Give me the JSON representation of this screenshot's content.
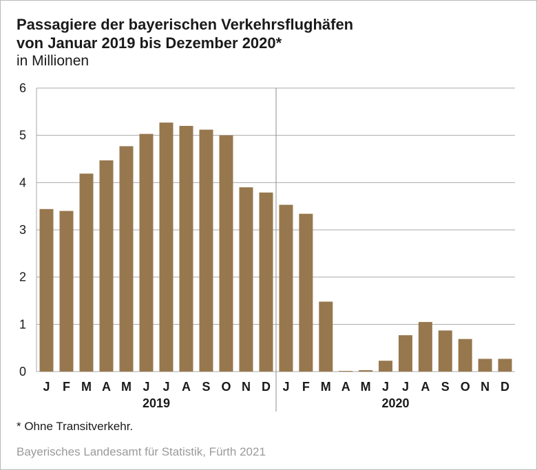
{
  "header": {
    "title_line1": "Passagiere der bayerischen Verkehrsflughäfen",
    "title_line2": "von Januar 2019 bis Dezember 2020*",
    "subtitle": "in Millionen"
  },
  "footnote": "*  Ohne Transitverkehr.",
  "source": "Bayerisches Landesamt für Statistik, Fürth 2021",
  "colors": {
    "bar": "#97774e",
    "grid": "#a9a9a9",
    "separator": "#8c8c8c"
  },
  "chart_data": {
    "type": "bar",
    "title": "Passagiere der bayerischen Verkehrsflughäfen von Januar 2019 bis Dezember 2020*",
    "ylabel": "in Millionen",
    "ylim": [
      0,
      6
    ],
    "yticks": [
      0,
      1,
      2,
      3,
      4,
      5,
      6
    ],
    "grid": true,
    "groups": [
      {
        "year": "2019",
        "categories": [
          "J",
          "F",
          "M",
          "A",
          "M",
          "J",
          "J",
          "A",
          "S",
          "O",
          "N",
          "D"
        ],
        "values": [
          3.44,
          3.4,
          4.19,
          4.47,
          4.77,
          5.03,
          5.27,
          5.2,
          5.12,
          5.0,
          3.9,
          3.79
        ]
      },
      {
        "year": "2020",
        "categories": [
          "J",
          "F",
          "M",
          "A",
          "M",
          "J",
          "J",
          "A",
          "S",
          "O",
          "N",
          "D"
        ],
        "values": [
          3.53,
          3.34,
          1.48,
          0.01,
          0.03,
          0.23,
          0.77,
          1.05,
          0.87,
          0.69,
          0.27,
          0.27
        ]
      }
    ]
  }
}
